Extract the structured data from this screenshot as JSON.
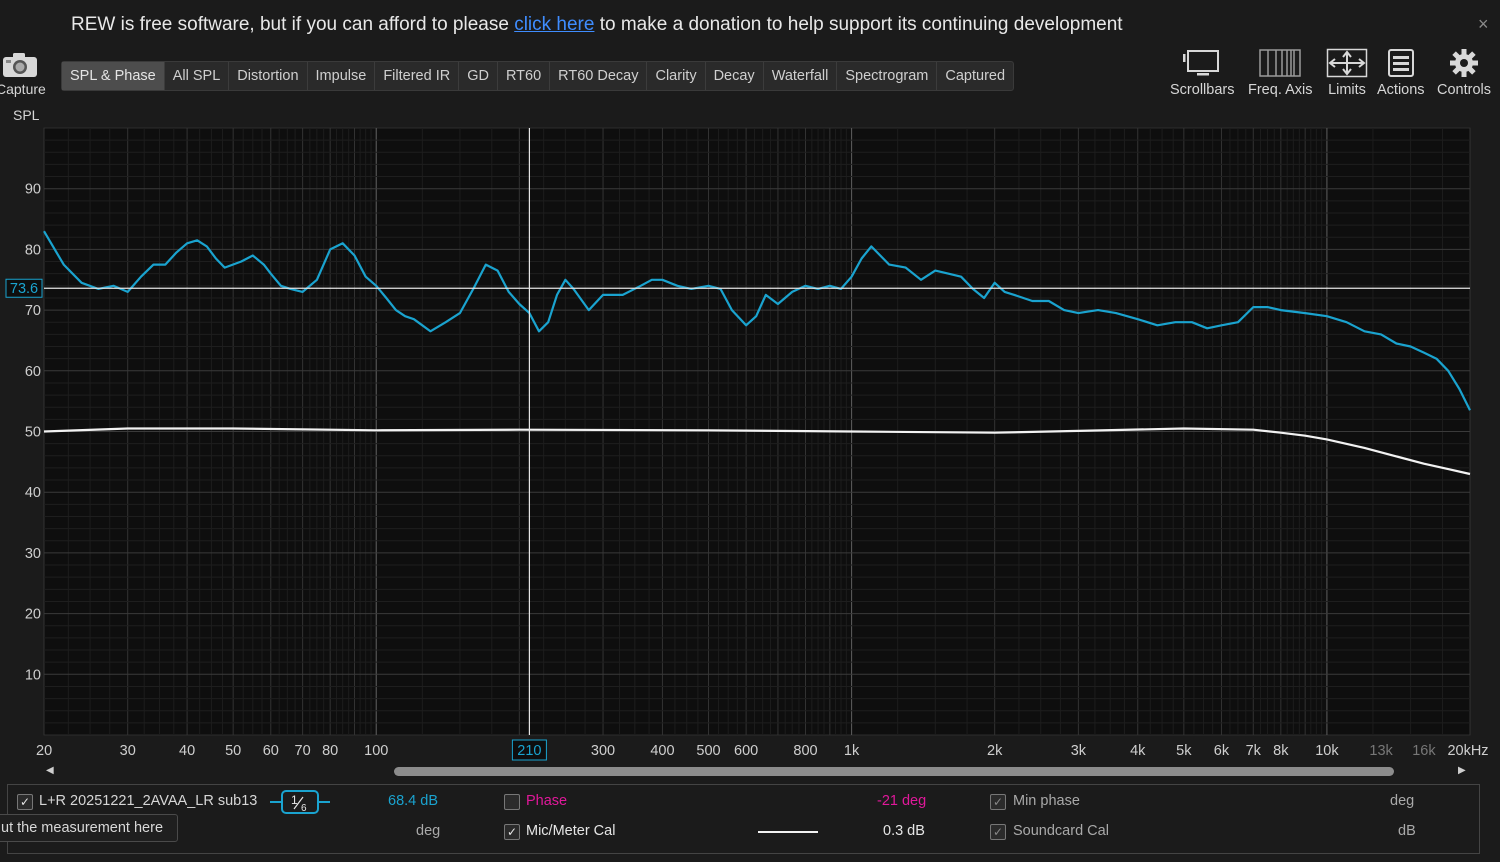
{
  "banner": {
    "text_before": "REW is free software, but if you can afford to please ",
    "link_text": "click here",
    "text_after": " to make a donation to help support its continuing development",
    "close_glyph": "×"
  },
  "capture": {
    "label": "Capture",
    "icon": "camera-icon"
  },
  "panel_label": "SPL",
  "tabs": [
    {
      "label": "SPL & Phase",
      "active": true
    },
    {
      "label": "All SPL"
    },
    {
      "label": "Distortion"
    },
    {
      "label": "Impulse"
    },
    {
      "label": "Filtered IR"
    },
    {
      "label": "GD"
    },
    {
      "label": "RT60"
    },
    {
      "label": "RT60 Decay"
    },
    {
      "label": "Clarity"
    },
    {
      "label": "Decay"
    },
    {
      "label": "Waterfall"
    },
    {
      "label": "Spectrogram"
    },
    {
      "label": "Captured"
    }
  ],
  "toolbar": {
    "scrollbars": "Scrollbars",
    "freq_axis": "Freq. Axis",
    "limits": "Limits",
    "actions": "Actions",
    "controls": "Controls"
  },
  "chart_data": {
    "type": "line",
    "xscale": "log",
    "xlim": [
      20,
      20000
    ],
    "ylim": [
      0,
      100
    ],
    "y_ticks": [
      10,
      20,
      30,
      40,
      50,
      60,
      70,
      80,
      90
    ],
    "x_ticks": [
      {
        "v": 20,
        "label": "20"
      },
      {
        "v": 30,
        "label": "30"
      },
      {
        "v": 40,
        "label": "40"
      },
      {
        "v": 50,
        "label": "50"
      },
      {
        "v": 60,
        "label": "60"
      },
      {
        "v": 70,
        "label": "70"
      },
      {
        "v": 80,
        "label": "80"
      },
      {
        "v": 100,
        "label": "100"
      },
      {
        "v": 300,
        "label": "300"
      },
      {
        "v": 400,
        "label": "400"
      },
      {
        "v": 500,
        "label": "500"
      },
      {
        "v": 600,
        "label": "600"
      },
      {
        "v": 800,
        "label": "800"
      },
      {
        "v": 1000,
        "label": "1k"
      },
      {
        "v": 2000,
        "label": "2k"
      },
      {
        "v": 3000,
        "label": "3k"
      },
      {
        "v": 4000,
        "label": "4k"
      },
      {
        "v": 5000,
        "label": "5k"
      },
      {
        "v": 6000,
        "label": "6k"
      },
      {
        "v": 7000,
        "label": "7k"
      },
      {
        "v": 8000,
        "label": "8k"
      },
      {
        "v": 10000,
        "label": "10k"
      },
      {
        "v": 13000,
        "label": "13k",
        "dim": true
      },
      {
        "v": 16000,
        "label": "16k",
        "dim": true
      },
      {
        "v": 20000,
        "label": "20kHz"
      }
    ],
    "cursor": {
      "x": 210,
      "x_label": "210",
      "y": 73.6,
      "y_label": "73.6"
    },
    "series": [
      {
        "color": "#1aa3cf",
        "x": [
          20,
          22,
          24,
          26,
          28,
          30,
          32,
          34,
          36,
          38,
          40,
          42,
          44,
          46,
          48,
          52,
          55,
          58,
          60,
          63,
          66,
          70,
          75,
          80,
          85,
          90,
          95,
          100,
          105,
          110,
          115,
          120,
          125,
          130,
          140,
          150,
          160,
          170,
          180,
          190,
          200,
          210,
          220,
          230,
          240,
          250,
          260,
          280,
          300,
          330,
          360,
          380,
          400,
          430,
          460,
          500,
          530,
          560,
          600,
          630,
          660,
          700,
          750,
          800,
          850,
          900,
          950,
          1000,
          1050,
          1100,
          1200,
          1300,
          1400,
          1500,
          1600,
          1700,
          1800,
          1900,
          2000,
          2100,
          2200,
          2400,
          2600,
          2800,
          3000,
          3300,
          3600,
          4000,
          4400,
          4800,
          5200,
          5600,
          6000,
          6500,
          7000,
          7500,
          8000,
          9000,
          10000,
          11000,
          12000,
          13000,
          14000,
          15000,
          16000,
          17000,
          18000,
          19000,
          20000
        ],
        "y": [
          83,
          77.5,
          74.5,
          73.5,
          74,
          73,
          75.5,
          77.5,
          77.5,
          79.5,
          81,
          81.5,
          80.5,
          78.5,
          77,
          78,
          79,
          77.5,
          76,
          74,
          73.5,
          73,
          75,
          80,
          81,
          79,
          75.5,
          74,
          72,
          70,
          69,
          68.5,
          67.5,
          66.5,
          68,
          69.5,
          73.5,
          77.5,
          76.5,
          73,
          71,
          69.5,
          66.5,
          68,
          72.5,
          75,
          73.5,
          70,
          72.5,
          72.5,
          74,
          75,
          75,
          74,
          73.5,
          74,
          73.5,
          70,
          67.5,
          69,
          72.5,
          71,
          73,
          74,
          73.5,
          74,
          73.5,
          75.5,
          78.5,
          80.5,
          77.5,
          77,
          75,
          76.5,
          76,
          75.5,
          73.5,
          72,
          74.5,
          73,
          72.5,
          71.5,
          71.5,
          70,
          69.5,
          70,
          69.5,
          68.5,
          67.5,
          68,
          68,
          67,
          67.5,
          68,
          70.5,
          70.5,
          70,
          69.5,
          69,
          68,
          66.5,
          66,
          64.5,
          64,
          63,
          62,
          60,
          57,
          53.5
        ]
      },
      {
        "color": "#f2f2f2",
        "x": [
          20,
          30,
          50,
          100,
          200,
          500,
          1000,
          2000,
          3000,
          5000,
          7000,
          8000,
          9000,
          10000,
          12000,
          14000,
          16000,
          18000,
          20000
        ],
        "y": [
          50,
          50.5,
          50.5,
          50.2,
          50.3,
          50.2,
          50,
          49.8,
          50.1,
          50.5,
          50.3,
          49.8,
          49.3,
          48.7,
          47.3,
          45.9,
          44.7,
          43.8,
          43
        ]
      }
    ]
  },
  "legend": {
    "row1": {
      "measurement_name": "L+R 20251221_2AVAA_LR sub13",
      "smoothing_num": "1",
      "smoothing_den": "6",
      "spl_value": "68.4 dB",
      "phase_label": "Phase",
      "phase_value": "-21 deg",
      "min_phase_label": "Min phase",
      "min_phase_unit": "deg"
    },
    "row2": {
      "note_text": "ut the measurement here",
      "phase_unit": "deg",
      "mic_cal_label": "Mic/Meter Cal",
      "mic_cal_value": "0.3 dB",
      "soundcard_cal_label": "Soundcard Cal",
      "soundcard_unit": "dB"
    },
    "colors": {
      "spl": "#1aa3cf",
      "phase": "#e0189a"
    }
  }
}
